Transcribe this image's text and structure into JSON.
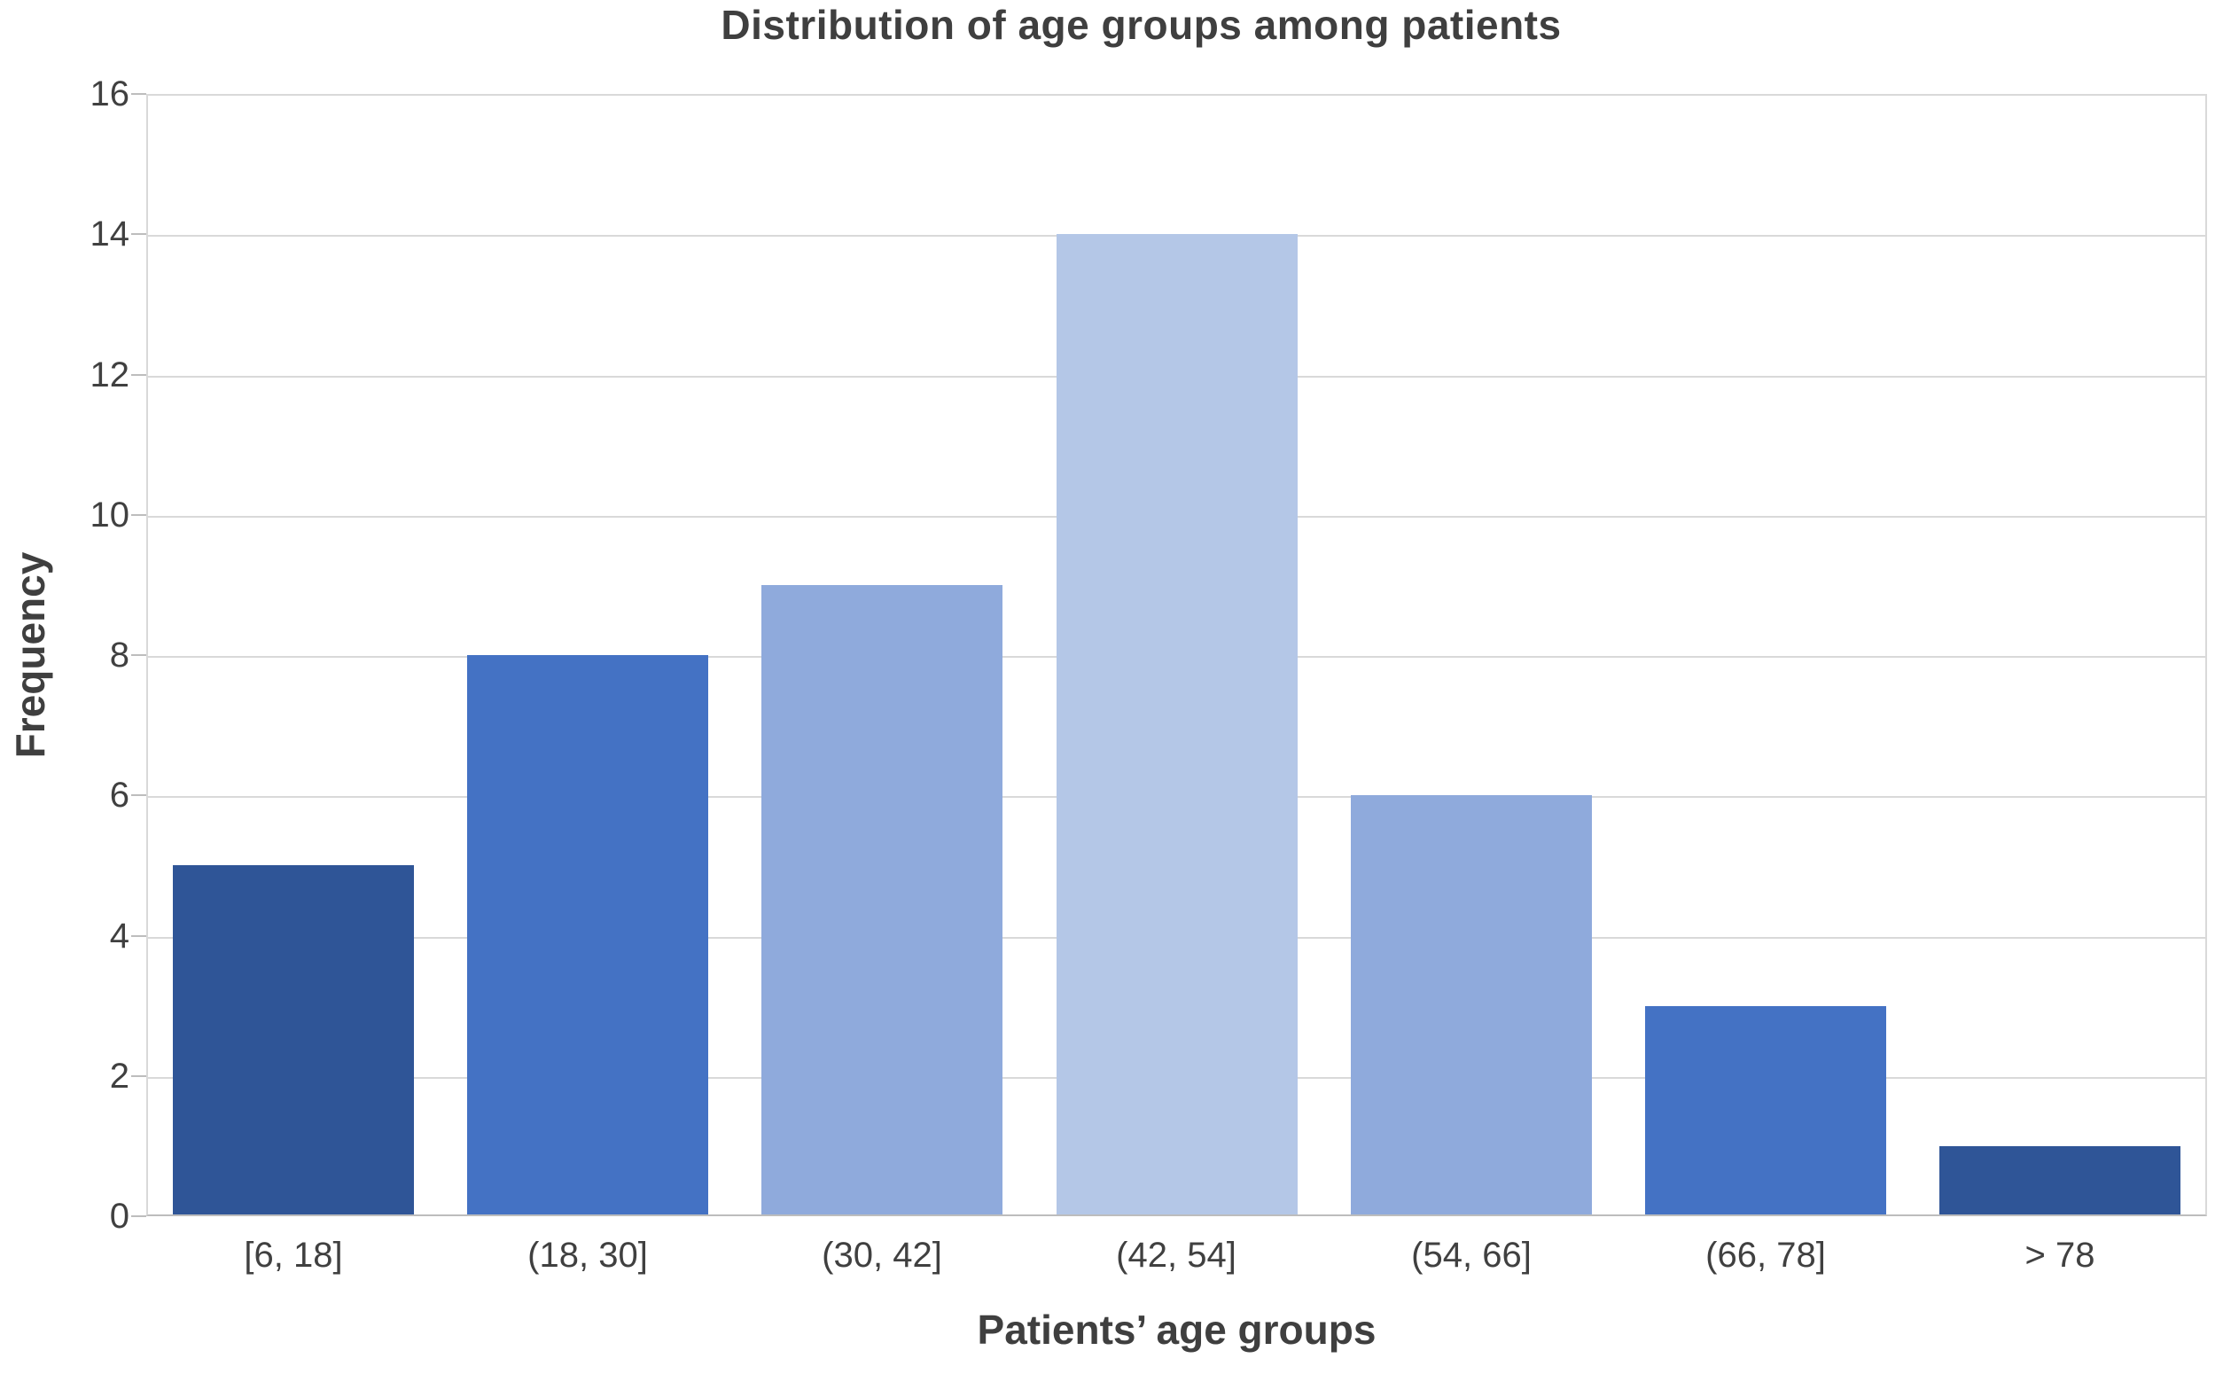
{
  "chart_data": {
    "type": "bar",
    "title": "Distribution of age groups among patients",
    "xlabel": "Patients’ age groups",
    "ylabel": "Frequency",
    "categories": [
      "[6, 18]",
      "(18, 30]",
      "(30, 42]",
      "(42, 54]",
      "(54, 66]",
      "(66, 78]",
      "> 78"
    ],
    "values": [
      5,
      8,
      9,
      14,
      6,
      3,
      1
    ],
    "bar_colors": [
      "#2F5597",
      "#4472C4",
      "#8FAADC",
      "#B4C7E7",
      "#8FAADC",
      "#4472C4",
      "#2F5597"
    ],
    "ylim": [
      0,
      16
    ],
    "yticks": [
      0,
      2,
      4,
      6,
      8,
      10,
      12,
      14,
      16
    ],
    "grid": true,
    "legend": false,
    "colors": {
      "title": "#3f3f3f",
      "text": "#404040",
      "grid": "#d9d9d9",
      "axis": "#bdbdbd",
      "background": "#ffffff"
    }
  }
}
